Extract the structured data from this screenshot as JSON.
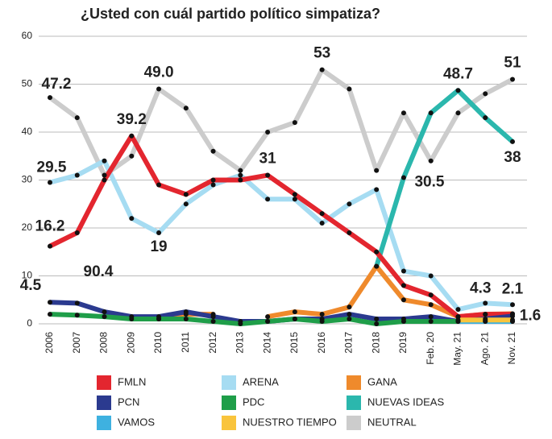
{
  "chart_data": {
    "type": "line",
    "title": "¿Usted con cuál partido político simpatiza?",
    "categories": [
      "2006",
      "2007",
      "2008",
      "2009",
      "2010",
      "2011",
      "2012",
      "2013",
      "2014",
      "2015",
      "2016",
      "2017",
      "2018",
      "2019",
      "Feb. 20",
      "May. 21",
      "Ago. 21",
      "Nov. 21"
    ],
    "ylim": [
      0,
      60
    ],
    "yticks": [
      0,
      10,
      20,
      30,
      40,
      50,
      60
    ],
    "grid": true,
    "annotations": [
      "90.4"
    ],
    "series": [
      {
        "name": "FMLN",
        "color": "#e3262f",
        "values": [
          16.2,
          19,
          30,
          39.2,
          29,
          27,
          30,
          30,
          31,
          27,
          23,
          19,
          15,
          8,
          6,
          1.5,
          2,
          2
        ],
        "value_labels": [
          "16.2",
          null,
          null,
          "39.2",
          null,
          null,
          null,
          null,
          "31",
          null,
          null,
          null,
          null,
          null,
          null,
          null,
          null,
          null
        ]
      },
      {
        "name": "PCN",
        "color": "#2b3a8f",
        "values": [
          4.5,
          4.3,
          2.5,
          1.5,
          1.5,
          2.5,
          1.5,
          0.5,
          0.5,
          1,
          1,
          2,
          1,
          1,
          1.5,
          0.5,
          1,
          1.6
        ],
        "value_labels": [
          "4.5",
          null,
          null,
          null,
          null,
          null,
          null,
          null,
          null,
          null,
          null,
          null,
          null,
          null,
          null,
          null,
          null,
          "1.6"
        ]
      },
      {
        "name": "VAMOS",
        "color": "#3eb1e0",
        "values": [
          null,
          null,
          null,
          null,
          null,
          null,
          null,
          null,
          null,
          null,
          null,
          null,
          null,
          null,
          null,
          0.5,
          0.5,
          0.5
        ]
      },
      {
        "name": "ARENA",
        "color": "#a6dcf2",
        "values": [
          29.5,
          31,
          34,
          22,
          19,
          25,
          29,
          31,
          26,
          26,
          21,
          25,
          28,
          11,
          10,
          3,
          4.3,
          4
        ],
        "value_labels": [
          "29.5",
          null,
          null,
          null,
          "19",
          null,
          null,
          null,
          null,
          null,
          null,
          null,
          null,
          null,
          null,
          null,
          "4.3",
          null
        ]
      },
      {
        "name": "PDC",
        "color": "#1f9e49",
        "values": [
          2,
          1.8,
          1.5,
          1,
          1,
          1,
          0.5,
          0,
          0.5,
          1,
          0.5,
          1,
          0,
          0.5,
          0.5,
          0.5,
          0.5,
          0.5
        ]
      },
      {
        "name": "NUESTRO TIEMPO",
        "color": "#f9c43c",
        "values": [
          null,
          null,
          null,
          null,
          null,
          null,
          null,
          null,
          null,
          null,
          null,
          null,
          null,
          null,
          null,
          0.8,
          0.8,
          0.8
        ]
      },
      {
        "name": "GANA",
        "color": "#ef8a2c",
        "values": [
          null,
          null,
          null,
          null,
          1,
          2,
          2,
          null,
          1.5,
          2.5,
          2,
          3.5,
          12,
          5,
          4,
          1.5,
          2,
          2.1
        ],
        "value_labels": [
          null,
          null,
          null,
          null,
          null,
          null,
          null,
          null,
          null,
          null,
          null,
          null,
          null,
          null,
          null,
          null,
          null,
          "2.1"
        ]
      },
      {
        "name": "NUEVAS IDEAS",
        "color": "#2bb7ad",
        "values": [
          null,
          null,
          null,
          null,
          null,
          null,
          null,
          null,
          null,
          null,
          null,
          null,
          12,
          30.5,
          44,
          48.7,
          43,
          38
        ],
        "value_labels": [
          null,
          null,
          null,
          null,
          null,
          null,
          null,
          null,
          null,
          null,
          null,
          null,
          null,
          "30.5",
          null,
          "48.7",
          null,
          "38"
        ]
      },
      {
        "name": "NEUTRAL",
        "color": "#cccccc",
        "values": [
          47.2,
          43,
          31,
          35,
          49,
          45,
          36,
          32,
          40,
          42,
          53,
          49,
          32,
          44,
          34,
          44,
          48,
          51
        ],
        "value_labels": [
          "47.2",
          null,
          null,
          null,
          "49.0",
          null,
          null,
          null,
          null,
          null,
          "53",
          null,
          null,
          null,
          null,
          null,
          null,
          "51"
        ]
      }
    ]
  }
}
